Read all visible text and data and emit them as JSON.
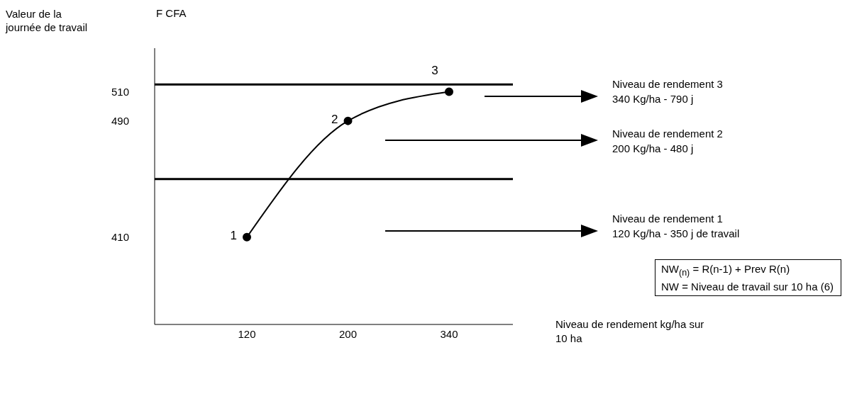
{
  "chart_data": {
    "type": "line",
    "ylabel": "Valeur de la journée de travail",
    "xlabel": "Niveau de rendement kg/ha sur 10 ha",
    "categories": [
      "120",
      "200",
      "340"
    ],
    "series": [
      {
        "color": "#000000",
        "values": [
          410,
          490,
          510
        ]
      }
    ],
    "ylim": [
      350,
      540
    ],
    "yticks": [
      410,
      490,
      510
    ],
    "marker": "circle",
    "line_style": "solid",
    "grid": false,
    "legend": false,
    "ref_lines": [
      {
        "axis": "y",
        "value": 515,
        "color": "#000000"
      },
      {
        "axis": "y",
        "value": 450,
        "color": "#000000"
      }
    ],
    "annotations": [
      "F CFA",
      {
        "text": "1",
        "x": "120",
        "y": 410
      },
      {
        "text": "2",
        "x": "200",
        "y": 490
      },
      {
        "text": "3",
        "x": "340",
        "y": 510
      },
      "Niveau de rendement 3\n340 Kg/ha - 790 j",
      "Niveau de rendement 2\n200 Kg/ha - 480 j",
      "Niveau de rendement 1\n120 Kg/ha - 350 j de travail",
      "NW$_{(n)}$ = R(n-1) + Prev R(n)\nNW = Niveau de travail sur 10 ha (6)"
    ]
  }
}
